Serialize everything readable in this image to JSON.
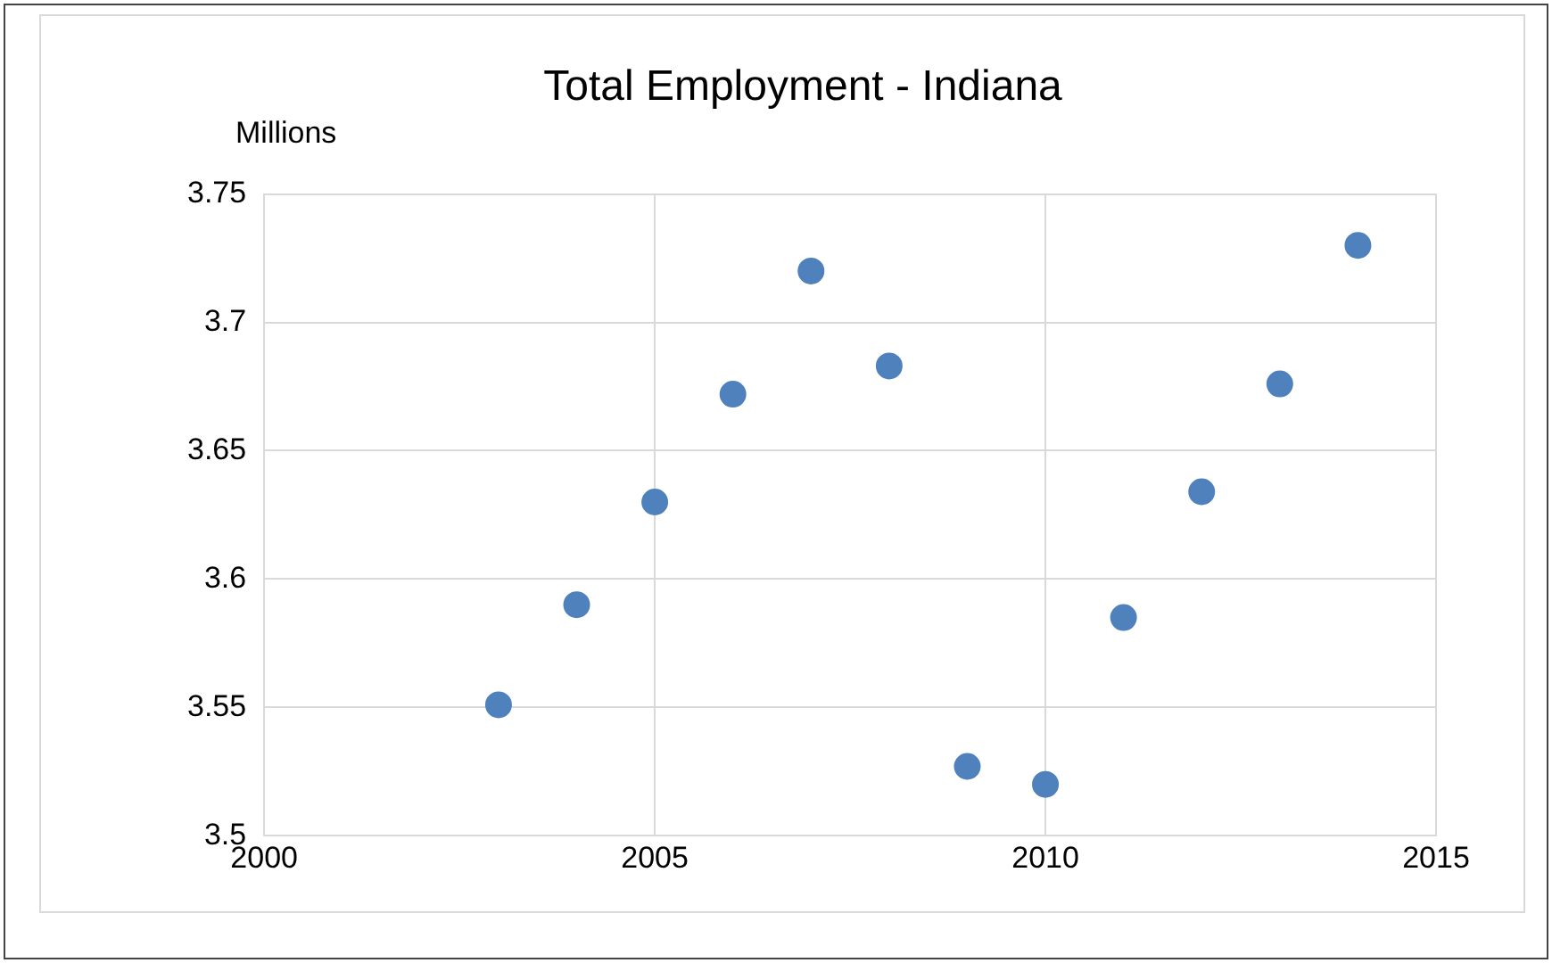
{
  "chart_data": {
    "type": "scatter",
    "title": "Total Employment - Indiana",
    "ylabel": "Millions",
    "x": [
      2003,
      2004,
      2005,
      2006,
      2007,
      2008,
      2009,
      2010,
      2011,
      2012,
      2013,
      2014
    ],
    "series": [
      {
        "color": "#4f81bd",
        "values": [
          3.551,
          3.59,
          3.63,
          3.672,
          3.72,
          3.683,
          3.527,
          3.52,
          3.585,
          3.634,
          3.676,
          3.73
        ]
      }
    ],
    "xlim": [
      2000,
      2015
    ],
    "xticks": [
      2000,
      2005,
      2010,
      2015
    ],
    "ylim": [
      3.5,
      3.75
    ],
    "yticks": [
      3.5,
      3.55,
      3.6,
      3.65,
      3.7,
      3.75
    ],
    "grid": true,
    "marker": "circle",
    "legend": false
  }
}
